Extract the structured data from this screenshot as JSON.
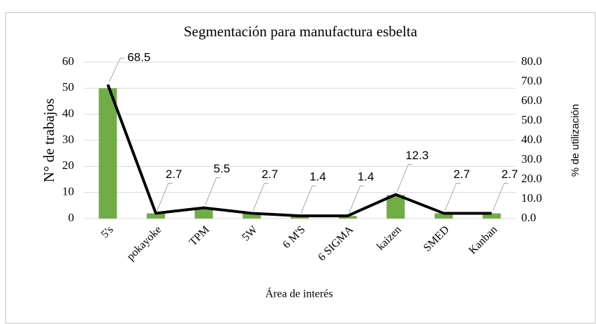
{
  "chart_data": {
    "type": "bar-line",
    "title": "Segmentación para manufactura esbelta",
    "x_label": "Área de interés",
    "y_label": "N° de trabajos",
    "y2_label": "% de utilización",
    "categories": [
      "5's",
      "pokayoke",
      "TPM",
      "5W",
      "6 M'S",
      "6 SIGMA",
      "kaizen",
      "SMED",
      "Kanban"
    ],
    "series": [
      {
        "name": "N° de trabajos",
        "type": "bar",
        "color": "#70ad47",
        "values": [
          50,
          2,
          4,
          2,
          1,
          1,
          9,
          2,
          2
        ]
      },
      {
        "name": "% de utilización",
        "type": "line",
        "axis": "y2",
        "color": "#000000",
        "values": [
          68.5,
          2.7,
          5.5,
          2.7,
          1.4,
          1.4,
          12.3,
          2.7,
          2.7
        ]
      }
    ],
    "ylim": [
      0,
      60
    ],
    "yticks": [
      0,
      10,
      20,
      30,
      40,
      50,
      60
    ],
    "y2lim": [
      0,
      80
    ],
    "y2ticks": [
      {
        "value": 0,
        "label": "0.0"
      },
      {
        "value": 10,
        "label": "10.0"
      },
      {
        "value": 20,
        "label": "20.0"
      },
      {
        "value": 30,
        "label": "30.0"
      },
      {
        "value": 40,
        "label": "40.0"
      },
      {
        "value": 50,
        "label": "50.0"
      },
      {
        "value": 60,
        "label": "60.0"
      },
      {
        "value": 70,
        "label": "70.0"
      },
      {
        "value": 80,
        "label": "80.0"
      }
    ],
    "grid": true
  }
}
